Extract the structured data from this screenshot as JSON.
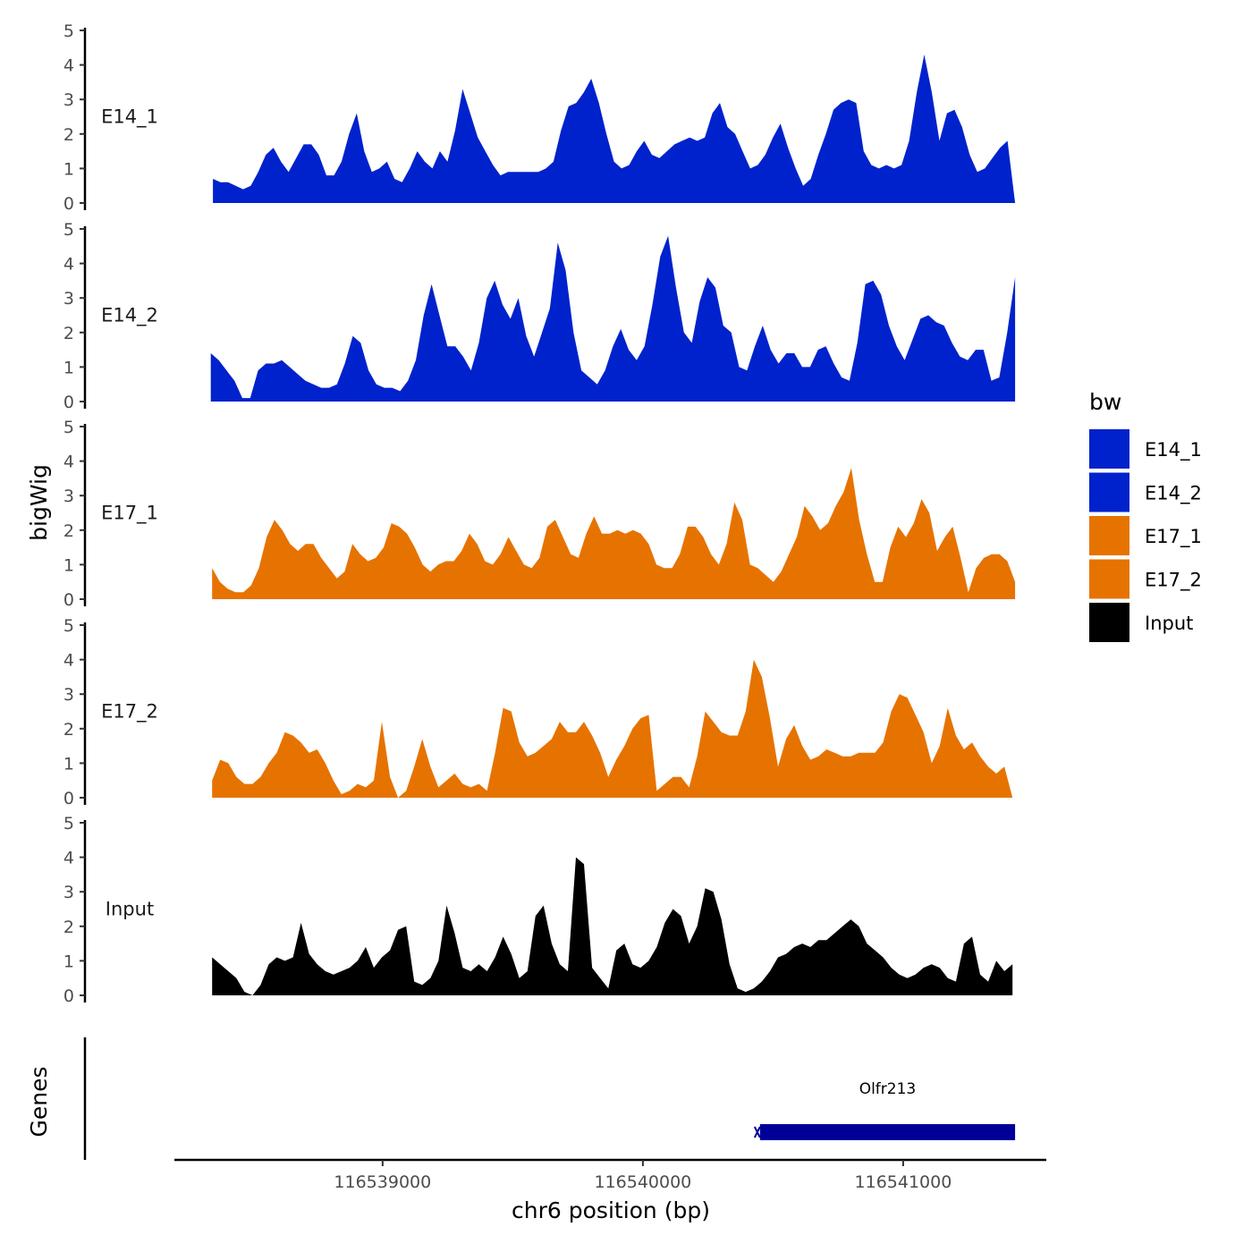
{
  "chart_data": {
    "type": "area",
    "ylabel": "bigWig",
    "xlabel": "chr6 position (bp)",
    "genes_label": "Genes",
    "ylim": [
      0,
      5
    ],
    "yticks": [
      0,
      1,
      2,
      3,
      4,
      5
    ],
    "xlim": [
      116538200,
      116541550
    ],
    "xticks": [
      116539000,
      116540000,
      116541000
    ],
    "xtick_labels": [
      "116539000",
      "116540000",
      "116541000"
    ],
    "legend": {
      "title": "bw",
      "entries": [
        {
          "label": "E14_1",
          "color": "#0022CC"
        },
        {
          "label": "E14_2",
          "color": "#0022CC"
        },
        {
          "label": "E17_1",
          "color": "#E67300"
        },
        {
          "label": "E17_2",
          "color": "#E67300"
        },
        {
          "label": "Input",
          "color": "#000000"
        }
      ]
    },
    "tracks": [
      {
        "name": "E14_1",
        "color": "#0022CC",
        "x_start": 116538348,
        "x_end": 116541430,
        "values": [
          0.7,
          0.6,
          0.6,
          0.5,
          0.4,
          0.5,
          0.9,
          1.4,
          1.6,
          1.2,
          0.9,
          1.3,
          1.7,
          1.7,
          1.4,
          0.8,
          0.8,
          1.2,
          2.0,
          2.6,
          1.5,
          0.9,
          1.0,
          1.2,
          0.7,
          0.6,
          1.0,
          1.5,
          1.2,
          1.0,
          1.5,
          1.2,
          2.1,
          3.3,
          2.6,
          1.9,
          1.5,
          1.1,
          0.8,
          0.9,
          0.9,
          0.9,
          0.9,
          0.9,
          1.0,
          1.2,
          2.1,
          2.8,
          2.9,
          3.2,
          3.6,
          2.9,
          2.0,
          1.2,
          1.0,
          1.1,
          1.5,
          1.8,
          1.4,
          1.3,
          1.5,
          1.7,
          1.8,
          1.9,
          1.8,
          1.9,
          2.6,
          2.9,
          2.2,
          2.0,
          1.5,
          1.0,
          1.1,
          1.4,
          1.9,
          2.3,
          1.6,
          1.0,
          0.5,
          0.7,
          1.4,
          2.0,
          2.7,
          2.9,
          3.0,
          2.9,
          1.5,
          1.1,
          1.0,
          1.1,
          1.0,
          1.1,
          1.8,
          3.2,
          4.3,
          3.2,
          1.8,
          2.6,
          2.7,
          2.2,
          1.4,
          0.9,
          1.0,
          1.3,
          1.6,
          1.8,
          0.0
        ]
      },
      {
        "name": "E14_2",
        "color": "#0022CC",
        "x_start": 116538340,
        "x_end": 116541430,
        "values": [
          1.4,
          1.2,
          0.9,
          0.6,
          0.1,
          0.1,
          0.9,
          1.1,
          1.1,
          1.2,
          1.0,
          0.8,
          0.6,
          0.5,
          0.4,
          0.4,
          0.5,
          1.1,
          1.9,
          1.7,
          0.9,
          0.5,
          0.4,
          0.4,
          0.3,
          0.6,
          1.2,
          2.5,
          3.4,
          2.5,
          1.6,
          1.6,
          1.3,
          0.9,
          1.7,
          3.0,
          3.5,
          2.8,
          2.4,
          3.0,
          1.9,
          1.3,
          2.0,
          2.7,
          4.6,
          3.8,
          2.0,
          0.9,
          0.7,
          0.5,
          0.9,
          1.6,
          2.1,
          1.5,
          1.2,
          1.6,
          2.8,
          4.2,
          4.8,
          3.3,
          2.0,
          1.7,
          2.9,
          3.6,
          3.3,
          2.2,
          2.0,
          1.0,
          0.9,
          1.6,
          2.2,
          1.5,
          1.1,
          1.4,
          1.4,
          1.0,
          1.0,
          1.5,
          1.6,
          1.1,
          0.7,
          0.6,
          1.7,
          3.4,
          3.5,
          3.1,
          2.2,
          1.6,
          1.2,
          1.8,
          2.4,
          2.5,
          2.3,
          2.2,
          1.7,
          1.3,
          1.2,
          1.5,
          1.5,
          0.6,
          0.7,
          2.0,
          3.6
        ]
      },
      {
        "name": "E17_1",
        "color": "#E67300",
        "x_start": 116538345,
        "x_end": 116541430,
        "values": [
          0.9,
          0.5,
          0.3,
          0.2,
          0.2,
          0.4,
          0.9,
          1.8,
          2.3,
          2.0,
          1.6,
          1.4,
          1.6,
          1.6,
          1.2,
          0.9,
          0.6,
          0.8,
          1.6,
          1.3,
          1.1,
          1.2,
          1.5,
          2.2,
          2.1,
          1.9,
          1.5,
          1.0,
          0.8,
          1.0,
          1.1,
          1.1,
          1.4,
          1.9,
          1.6,
          1.1,
          1.0,
          1.3,
          1.8,
          1.4,
          1.0,
          0.9,
          1.2,
          2.1,
          2.3,
          1.8,
          1.3,
          1.2,
          1.9,
          2.4,
          1.9,
          1.9,
          2.0,
          1.9,
          2.0,
          1.9,
          1.6,
          1.0,
          0.9,
          0.9,
          1.3,
          2.1,
          2.1,
          1.8,
          1.3,
          1.0,
          1.6,
          2.8,
          2.3,
          1.0,
          0.9,
          0.7,
          0.5,
          0.8,
          1.3,
          1.8,
          2.7,
          2.4,
          2.0,
          2.2,
          2.7,
          3.1,
          3.8,
          2.3,
          1.3,
          0.5,
          0.5,
          1.5,
          2.1,
          1.8,
          2.2,
          2.9,
          2.5,
          1.4,
          1.8,
          2.1,
          1.2,
          0.2,
          0.9,
          1.2,
          1.3,
          1.3,
          1.1,
          0.5
        ]
      },
      {
        "name": "E17_2",
        "color": "#E67300",
        "x_start": 116538345,
        "x_end": 116541420,
        "values": [
          0.5,
          1.1,
          1.0,
          0.6,
          0.4,
          0.4,
          0.6,
          1.0,
          1.3,
          1.9,
          1.8,
          1.6,
          1.3,
          1.4,
          1.0,
          0.5,
          0.1,
          0.2,
          0.4,
          0.3,
          0.5,
          2.2,
          0.6,
          0.0,
          0.2,
          0.9,
          1.7,
          0.9,
          0.3,
          0.5,
          0.7,
          0.4,
          0.3,
          0.4,
          0.2,
          1.3,
          2.6,
          2.5,
          1.6,
          1.2,
          1.3,
          1.5,
          1.7,
          2.2,
          1.9,
          1.9,
          2.2,
          1.8,
          1.3,
          0.6,
          1.1,
          1.5,
          2.0,
          2.3,
          2.4,
          0.2,
          0.4,
          0.6,
          0.6,
          0.3,
          1.2,
          2.5,
          2.2,
          1.9,
          1.8,
          1.8,
          2.5,
          4.0,
          3.5,
          2.3,
          0.9,
          1.7,
          2.1,
          1.5,
          1.1,
          1.2,
          1.4,
          1.3,
          1.2,
          1.2,
          1.3,
          1.3,
          1.3,
          1.6,
          2.5,
          3.0,
          2.9,
          2.4,
          1.9,
          1.0,
          1.5,
          2.6,
          1.8,
          1.4,
          1.6,
          1.2,
          0.9,
          0.7,
          0.9,
          0.0
        ]
      },
      {
        "name": "Input",
        "color": "#000000",
        "x_start": 116538345,
        "x_end": 116541420,
        "values": [
          1.1,
          0.9,
          0.7,
          0.5,
          0.1,
          0.0,
          0.3,
          0.9,
          1.1,
          1.0,
          1.1,
          2.1,
          1.2,
          0.9,
          0.7,
          0.6,
          0.7,
          0.8,
          1.0,
          1.4,
          0.8,
          1.1,
          1.3,
          1.9,
          2.0,
          0.4,
          0.3,
          0.5,
          1.0,
          2.6,
          1.8,
          0.8,
          0.7,
          0.9,
          0.7,
          1.1,
          1.7,
          1.2,
          0.5,
          0.7,
          2.3,
          2.6,
          1.5,
          0.9,
          0.7,
          4.0,
          3.8,
          0.8,
          0.5,
          0.2,
          1.3,
          1.5,
          0.9,
          0.8,
          1.0,
          1.4,
          2.1,
          2.5,
          2.3,
          1.5,
          2.0,
          3.1,
          3.0,
          2.2,
          0.9,
          0.2,
          0.1,
          0.2,
          0.4,
          0.7,
          1.1,
          1.2,
          1.4,
          1.5,
          1.4,
          1.6,
          1.6,
          1.8,
          2.0,
          2.2,
          2.0,
          1.5,
          1.3,
          1.1,
          0.8,
          0.6,
          0.5,
          0.6,
          0.8,
          0.9,
          0.8,
          0.5,
          0.4,
          1.5,
          1.7,
          0.6,
          0.4,
          1.0,
          0.7,
          0.9
        ]
      }
    ],
    "genes": [
      {
        "name": "Olfr213",
        "start": 116540450,
        "end": 116541430,
        "strand": "-",
        "color": "#000099"
      }
    ]
  }
}
